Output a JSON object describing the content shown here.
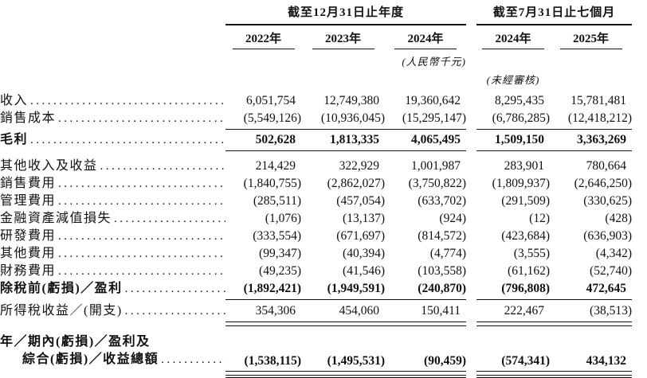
{
  "table": {
    "groups": [
      {
        "title": "截至12月31日止年度",
        "years": [
          "2022年",
          "2023年",
          "2024年"
        ]
      },
      {
        "title": "截至7月31日止七個月",
        "years": [
          "2024年",
          "2025年"
        ]
      }
    ],
    "notes": {
      "currency": "(人民幣千元)",
      "unaudited": "(未經審核)"
    },
    "leader_char": ".",
    "rows": [
      {
        "label": "收入",
        "underline": "none",
        "values": [
          "6,051,754",
          "12,749,380",
          "19,360,642",
          "8,295,435",
          "15,781,481"
        ]
      },
      {
        "label": "銷售成本",
        "underline": "single",
        "values": [
          "(5,549,126)",
          "(10,936,045)",
          "(15,295,147)",
          "(6,786,285)",
          "(12,418,212)"
        ]
      },
      {
        "label": "毛利",
        "bold": true,
        "underline": "single",
        "gap_before": 2,
        "gap_after": 8,
        "values": [
          "502,628",
          "1,813,335",
          "4,065,495",
          "1,509,150",
          "3,363,269"
        ]
      },
      {
        "label": "其他收入及收益",
        "underline": "none",
        "values": [
          "214,429",
          "322,929",
          "1,001,987",
          "283,901",
          "780,664"
        ]
      },
      {
        "label": "銷售費用",
        "underline": "none",
        "values": [
          "(1,840,755)",
          "(2,862,027)",
          "(3,750,822)",
          "(1,809,937)",
          "(2,646,250)"
        ]
      },
      {
        "label": "管理費用",
        "underline": "none",
        "values": [
          "(285,511)",
          "(457,054)",
          "(633,702)",
          "(291,509)",
          "(330,625)"
        ]
      },
      {
        "label": "金融資產減值損失",
        "underline": "none",
        "values": [
          "(1,076)",
          "(13,137)",
          "(924)",
          "(12)",
          "(428)"
        ]
      },
      {
        "label": "研發費用",
        "underline": "none",
        "values": [
          "(333,554)",
          "(671,697)",
          "(814,572)",
          "(423,684)",
          "(636,903)"
        ]
      },
      {
        "label": "其他費用",
        "underline": "none",
        "values": [
          "(99,347)",
          "(40,394)",
          "(4,774)",
          "(3,555)",
          "(4,342)"
        ]
      },
      {
        "label": "財務費用",
        "underline": "none",
        "values": [
          "(49,235)",
          "(41,546)",
          "(103,558)",
          "(61,162)",
          "(52,740)"
        ]
      },
      {
        "label": "除稅前(虧損)／盈利",
        "bold": true,
        "underline": "single",
        "values": [
          "(1,892,421)",
          "(1,949,591)",
          "(240,870)",
          "(796,808)",
          "472,645"
        ]
      },
      {
        "label": "所得稅收益／(開支)",
        "underline": "double",
        "gap_before": 3,
        "values": [
          "354,306",
          "454,060",
          "150,411",
          "222,467",
          "(38,513)"
        ]
      },
      {
        "label_lines": [
          "年／期內(虧損)／盈利及",
          "綜合(虧損)／收益總額"
        ],
        "bold": true,
        "underline": "total",
        "gap_before": 9,
        "values": [
          "(1,538,115)",
          "(1,495,531)",
          "(90,459)",
          "(574,341)",
          "434,132"
        ]
      }
    ]
  }
}
